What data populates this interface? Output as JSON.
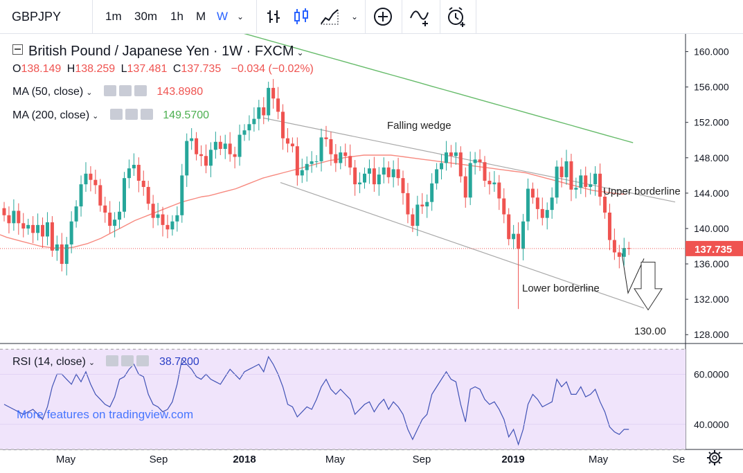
{
  "toolbar": {
    "symbol": "GBPJPY",
    "intervals": [
      "1m",
      "30m",
      "1h",
      "M",
      "W"
    ],
    "active_interval": "W"
  },
  "legend": {
    "title": "British Pound / Japanese Yen · 1W · FXCM",
    "ohlc": {
      "o_label": "O",
      "o": "138.149",
      "h_label": "H",
      "h": "138.259",
      "l_label": "L",
      "l": "137.481",
      "c_label": "C",
      "c": "137.735",
      "change": "−0.034 (−0.02%)"
    },
    "ma50": {
      "label": "MA (50, close)",
      "value": "143.8980",
      "color": "#ef5350"
    },
    "ma200": {
      "label": "MA (200, close)",
      "value": "149.5700",
      "color": "#4caf50"
    },
    "rsi": {
      "label": "RSI (14, close)",
      "value": "38.7200",
      "color": "#2a3fc5"
    }
  },
  "watermark": "More features on tradingview.com",
  "colors": {
    "up": "#26a69a",
    "down": "#ef5350",
    "rsi_band": "#f0e4fb",
    "ma50": "#f7897f",
    "ma200": "#66bb6a",
    "rsi_line": "#3f51b5"
  },
  "chart_data": [
    {
      "type": "candlestick",
      "title": "British Pound / Japanese Yen · 1W · FXCM",
      "ylim": [
        127,
        162
      ],
      "y_ticks": [
        "160.000",
        "156.000",
        "152.000",
        "148.000",
        "144.000",
        "140.000",
        "136.000",
        "132.000",
        "128.000"
      ],
      "x_ticks": [
        "May",
        "Sep",
        "2018",
        "May",
        "Sep",
        "2019",
        "May",
        "Se"
      ],
      "last_price_label": "137.735",
      "annotations": [
        "Falling wedge",
        "Upper borderline",
        "Lower borderline",
        "130.00"
      ],
      "close": [
        141.5,
        140.6,
        142.0,
        140.6,
        140.0,
        140.4,
        139.5,
        140.4,
        139.1,
        140.7,
        137.5,
        138.2,
        136.0,
        138.2,
        140.8,
        142.5,
        145.0,
        146.2,
        145.5,
        144.9,
        142.6,
        141.8,
        140.3,
        141.0,
        141.9,
        145.7,
        146.8,
        147.2,
        145.4,
        144.7,
        142.8,
        141.2,
        141.6,
        140.4,
        139.9,
        140.8,
        141.5,
        146.0,
        149.9,
        150.2,
        148.4,
        148.2,
        147.1,
        148.9,
        149.8,
        149.0,
        149.6,
        148.4,
        148.1,
        150.6,
        151.1,
        151.8,
        152.4,
        153.7,
        152.8,
        155.9,
        154.7,
        153.2,
        150.2,
        149.6,
        149.3,
        146.0,
        146.6,
        147.3,
        147.6,
        147.6,
        150.3,
        150.1,
        148.4,
        147.4,
        148.6,
        148.2,
        146.9,
        145.0,
        145.2,
        146.2,
        146.8,
        145.0,
        146.1,
        146.9,
        145.8,
        146.7,
        145.7,
        144.0,
        141.6,
        140.3,
        142.7,
        142.5,
        143.0,
        145.1,
        146.7,
        147.4,
        148.6,
        148.2,
        148.6,
        145.9,
        143.5,
        147.4,
        147.8,
        147.5,
        145.4,
        145.0,
        145.2,
        143.4,
        141.6,
        138.8,
        139.4,
        137.7,
        140.8,
        144.5,
        143.5,
        142.2,
        141.2,
        142.1,
        143.5,
        147.0,
        145.8,
        147.6,
        144.4,
        144.6,
        146.0,
        144.7,
        145.0,
        146.2,
        143.6,
        141.8,
        138.7,
        137.3,
        136.8,
        137.8,
        137.7
      ],
      "ma50": [
        139.3,
        139.0,
        138.8,
        138.6,
        138.4,
        138.2,
        138.0,
        137.9,
        137.8,
        137.8,
        137.8,
        137.9,
        138.1,
        138.3,
        138.6,
        138.9,
        139.3,
        139.7,
        140.1,
        140.5,
        140.9,
        141.2,
        141.5,
        141.8,
        142.1,
        142.4,
        142.7,
        143.0,
        143.2,
        143.4,
        143.6,
        143.7,
        143.9,
        144.1,
        144.3,
        144.5,
        144.8,
        145.1,
        145.4,
        145.7,
        145.9,
        146.1,
        146.3,
        146.5,
        146.7,
        146.9,
        147.1,
        147.3,
        147.5,
        147.7,
        147.8,
        148.0,
        148.1,
        148.2,
        148.3,
        148.3,
        148.3,
        148.3,
        148.3,
        148.2,
        148.1,
        148.0,
        147.9,
        147.8,
        147.7,
        147.6,
        147.5,
        147.4,
        147.3,
        147.2,
        147.1,
        147.0,
        146.9,
        146.8,
        146.7,
        146.6,
        146.5,
        146.4,
        146.3,
        146.1,
        145.9,
        145.7,
        145.5,
        145.3,
        145.1,
        144.9,
        144.7,
        144.5,
        144.3,
        144.2,
        144.1,
        144.0,
        143.9,
        143.9
      ],
      "ma200": [
        162.1,
        161.7,
        161.3,
        160.9,
        160.5,
        160.1,
        159.7,
        159.3,
        158.9,
        158.5,
        158.1,
        157.7,
        157.3,
        156.9,
        156.5,
        156.1,
        155.7,
        155.3,
        154.9,
        154.5,
        154.1,
        153.7,
        153.3,
        152.9,
        152.5,
        152.1,
        151.7,
        151.3,
        150.9,
        150.5,
        150.1,
        149.7
      ],
      "rsi_ylim": [
        30,
        72
      ],
      "rsi_ticks": [
        "60.0000",
        "40.0000"
      ],
      "rsi": [
        48,
        47,
        46,
        45,
        44,
        45,
        46,
        44,
        42,
        47,
        55,
        60,
        60,
        58,
        56,
        60,
        57,
        61,
        56,
        52,
        50,
        48,
        47,
        51,
        58,
        59,
        62,
        64,
        60,
        59,
        52,
        48,
        47,
        45,
        46,
        49,
        56,
        66,
        64,
        62,
        59,
        58,
        60,
        58,
        57,
        56,
        59,
        62,
        60,
        58,
        61,
        62,
        63,
        64,
        61,
        67,
        64,
        60,
        55,
        48,
        47,
        43,
        45,
        47,
        46,
        50,
        55,
        58,
        54,
        52,
        54,
        52,
        50,
        44,
        46,
        48,
        49,
        45,
        48,
        50,
        46,
        49,
        47,
        44,
        38,
        34,
        38,
        42,
        44,
        52,
        55,
        58,
        61,
        58,
        57,
        48,
        41,
        54,
        55,
        54,
        50,
        48,
        49,
        46,
        42,
        35,
        38,
        32,
        38,
        48,
        52,
        50,
        47,
        48,
        49,
        58,
        55,
        57,
        52,
        52,
        55,
        51,
        52,
        54,
        49,
        45,
        39,
        37,
        36,
        38,
        38
      ],
      "wedge_upper": [
        [
          0,
          152.5
        ],
        [
          60,
          143.0
        ]
      ],
      "wedge_lower": [
        [
          0,
          145.2
        ],
        [
          100,
          131.0
        ]
      ]
    }
  ]
}
